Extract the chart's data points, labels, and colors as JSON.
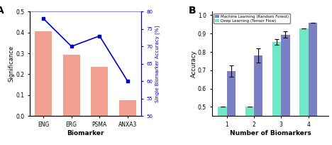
{
  "panel_A": {
    "bar_categories": [
      "ENG",
      "ERG",
      "PSMA",
      "ANXA3"
    ],
    "bar_values": [
      0.405,
      0.295,
      0.235,
      0.075
    ],
    "bar_color": "#F4A090",
    "line_values": [
      78,
      70,
      73,
      60
    ],
    "line_color": "#0000CC",
    "line_marker": "s",
    "left_ylabel": "Significance",
    "right_ylabel": "Single Biomarker Accuracy [%]",
    "xlabel": "Biomarker",
    "left_ylim": [
      0.0,
      0.5
    ],
    "right_ylim": [
      50,
      80
    ],
    "right_yticks": [
      50,
      55,
      60,
      65,
      70,
      75,
      80
    ],
    "left_yticks": [
      0.0,
      0.1,
      0.2,
      0.3,
      0.4,
      0.5
    ],
    "panel_label": "A"
  },
  "panel_B": {
    "dl_values": [
      0.5,
      0.5,
      0.855,
      0.93
    ],
    "dl_errors": [
      0.0,
      0.0,
      0.015,
      0.0
    ],
    "ml_values": [
      0.695,
      0.78,
      0.895,
      0.958
    ],
    "ml_errors": [
      0.03,
      0.04,
      0.018,
      0.0
    ],
    "ml_color": "#7B7FC4",
    "dl_color": "#70E8C8",
    "xlabel": "Number of Biomarkers",
    "ylabel": "Accuracy",
    "ylim": [
      0.45,
      1.02
    ],
    "yticks": [
      0.5,
      0.6,
      0.7,
      0.8,
      0.9,
      1.0
    ],
    "legend_ml": "Machine Learning (Random Forest)",
    "legend_dl": "Deep Learning (Tensor Flow)",
    "panel_label": "B",
    "bar_width": 0.32
  }
}
